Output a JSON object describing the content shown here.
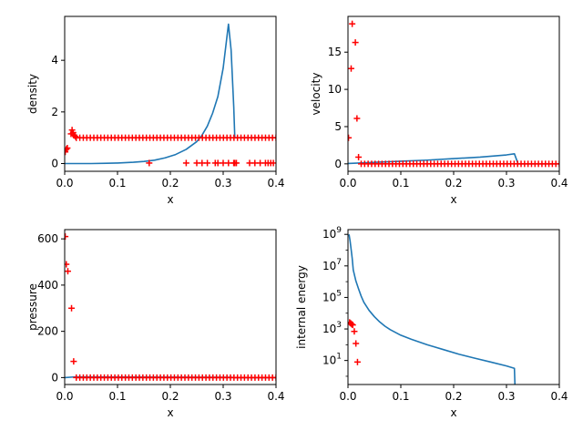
{
  "chart_data": [
    {
      "type": "line",
      "xlabel": "x",
      "ylabel": "density",
      "xlim": [
        0,
        0.4
      ],
      "ylim": [
        -0.3,
        5.7
      ],
      "yscale": "linear",
      "grid": false,
      "xticks": [
        0.0,
        0.1,
        0.2,
        0.3,
        0.4
      ],
      "xtick_labels": [
        "0.0",
        "0.1",
        "0.2",
        "0.3",
        "0.4"
      ],
      "yticks": [
        0,
        2,
        4
      ],
      "ytick_labels": [
        "0",
        "2",
        "4"
      ],
      "series": [
        {
          "kind": "line",
          "color": "#1f77b4",
          "x": [
            0.0,
            0.02,
            0.05,
            0.08,
            0.1,
            0.13,
            0.15,
            0.17,
            0.19,
            0.21,
            0.23,
            0.25,
            0.26,
            0.27,
            0.28,
            0.29,
            0.3,
            0.31,
            0.315,
            0.32,
            0.322,
            0.325,
            0.4
          ],
          "y": [
            0.0,
            0.0,
            0.0,
            0.01,
            0.02,
            0.05,
            0.08,
            0.13,
            0.22,
            0.35,
            0.55,
            0.85,
            1.1,
            1.45,
            1.95,
            2.6,
            3.7,
            5.4,
            4.4,
            2.2,
            1.0,
            1.0,
            1.0
          ]
        },
        {
          "kind": "flat_segment",
          "color": "#6b66b0",
          "x": [
            0.333,
            0.4
          ],
          "y": [
            1.0,
            1.0
          ]
        },
        {
          "kind": "scatter",
          "marker": "+",
          "color": "#ff0000",
          "x": [
            0.001,
            0.003,
            0.005,
            0.012,
            0.014,
            0.016,
            0.018,
            0.02,
            0.022,
            0.16,
            0.23,
            0.25,
            0.26,
            0.27,
            0.285,
            0.29,
            0.3,
            0.31,
            0.32,
            0.322,
            0.325,
            0.35,
            0.36,
            0.37,
            0.38,
            0.385,
            0.39,
            0.395
          ],
          "y": [
            0.45,
            0.55,
            0.6,
            1.15,
            1.3,
            1.2,
            1.1,
            1.05,
            1.0,
            0.02,
            0.02,
            0.02,
            0.02,
            0.02,
            0.02,
            0.02,
            0.02,
            0.02,
            0.02,
            0.02,
            0.02,
            0.02,
            0.02,
            0.02,
            0.02,
            0.02,
            0.02,
            0.02
          ]
        },
        {
          "kind": "scatter_row",
          "marker": "+",
          "color": "#ff0000",
          "x_start": 0.022,
          "x_end": 0.4,
          "count": 58,
          "y": 1.0
        }
      ]
    },
    {
      "type": "line",
      "xlabel": "x",
      "ylabel": "velocity",
      "xlim": [
        0,
        0.4
      ],
      "ylim": [
        -1.0,
        19.8
      ],
      "yscale": "linear",
      "grid": false,
      "xticks": [
        0.0,
        0.1,
        0.2,
        0.3,
        0.4
      ],
      "xtick_labels": [
        "0.0",
        "0.1",
        "0.2",
        "0.3",
        "0.4"
      ],
      "yticks": [
        0,
        5,
        10,
        15
      ],
      "ytick_labels": [
        "0",
        "5",
        "10",
        "15"
      ],
      "series": [
        {
          "kind": "line",
          "color": "#1f77b4",
          "x": [
            0.0,
            0.05,
            0.1,
            0.15,
            0.2,
            0.25,
            0.3,
            0.315,
            0.322,
            0.4
          ],
          "y": [
            0.05,
            0.2,
            0.35,
            0.5,
            0.7,
            0.9,
            1.2,
            1.35,
            0.0,
            0.0
          ]
        },
        {
          "kind": "flat_segment",
          "color": "#6b66b0",
          "x": [
            0.022,
            0.4
          ],
          "y": [
            0.0,
            0.0
          ]
        },
        {
          "kind": "scatter",
          "marker": "+",
          "color": "#ff0000",
          "x": [
            0.001,
            0.006,
            0.008,
            0.014,
            0.017,
            0.02
          ],
          "y": [
            3.5,
            12.8,
            18.8,
            16.3,
            6.1,
            0.9
          ]
        },
        {
          "kind": "scatter_row",
          "marker": "+",
          "color": "#ff0000",
          "x_start": 0.025,
          "x_end": 0.4,
          "count": 58,
          "y": 0.0
        }
      ]
    },
    {
      "type": "line",
      "xlabel": "x",
      "ylabel": "pressure",
      "xlim": [
        0,
        0.4
      ],
      "ylim": [
        -30,
        640
      ],
      "yscale": "linear",
      "grid": false,
      "xticks": [
        0.0,
        0.1,
        0.2,
        0.3,
        0.4
      ],
      "xtick_labels": [
        "0.0",
        "0.1",
        "0.2",
        "0.3",
        "0.4"
      ],
      "yticks": [
        0,
        200,
        400,
        600
      ],
      "ytick_labels": [
        "0",
        "200",
        "400",
        "600"
      ],
      "series": [
        {
          "kind": "line",
          "color": "#1f77b4",
          "x": [
            0.0,
            0.02,
            0.1,
            0.2,
            0.3,
            0.315,
            0.322,
            0.4
          ],
          "y": [
            0.0,
            3.0,
            2.5,
            2.0,
            1.5,
            1.5,
            0.0,
            0.0
          ]
        },
        {
          "kind": "flat_segment",
          "color": "#6b66b0",
          "x": [
            0.022,
            0.4
          ],
          "y": [
            0.0,
            0.0
          ]
        },
        {
          "kind": "scatter",
          "marker": "+",
          "color": "#ff0000",
          "x": [
            0.001,
            0.003,
            0.006,
            0.013,
            0.017
          ],
          "y": [
            610,
            490,
            460,
            300,
            70
          ]
        },
        {
          "kind": "scatter_row",
          "marker": "+",
          "color": "#ff0000",
          "x_start": 0.022,
          "x_end": 0.4,
          "count": 58,
          "y": 0.0
        }
      ]
    },
    {
      "type": "line",
      "xlabel": "x",
      "ylabel": "internal energy",
      "xlim": [
        0,
        0.4
      ],
      "ylim": [
        0.3,
        2000000000
      ],
      "yscale": "log",
      "grid": false,
      "xticks": [
        0.0,
        0.1,
        0.2,
        0.3,
        0.4
      ],
      "xtick_labels": [
        "0.0",
        "0.1",
        "0.2",
        "0.3",
        "0.4"
      ],
      "yticks": [
        10,
        1000,
        100000,
        10000000,
        1000000000
      ],
      "ytick_base": "10",
      "ytick_exponents": [
        "1",
        "3",
        "5",
        "7",
        "9"
      ],
      "series": [
        {
          "kind": "line",
          "color": "#1f77b4",
          "x": [
            0.002,
            0.004,
            0.006,
            0.008,
            0.01,
            0.015,
            0.02,
            0.025,
            0.03,
            0.04,
            0.05,
            0.06,
            0.07,
            0.08,
            0.1,
            0.12,
            0.15,
            0.18,
            0.21,
            0.24,
            0.27,
            0.3,
            0.315,
            0.316
          ],
          "y": [
            1000000000,
            380000000,
            110000000,
            30000000,
            5500000,
            1100000,
            350000,
            120000,
            50000,
            15000,
            6000,
            2800,
            1500,
            900,
            400,
            220,
            100,
            50,
            25,
            14,
            8,
            4.5,
            3.2,
            0.3
          ]
        },
        {
          "kind": "scatter",
          "marker": "+",
          "color": "#ff0000",
          "x": [
            0.003,
            0.005,
            0.007,
            0.009,
            0.012,
            0.015,
            0.018
          ],
          "y": [
            2600,
            2300,
            2000,
            1800,
            700,
            120,
            8
          ]
        }
      ]
    }
  ]
}
